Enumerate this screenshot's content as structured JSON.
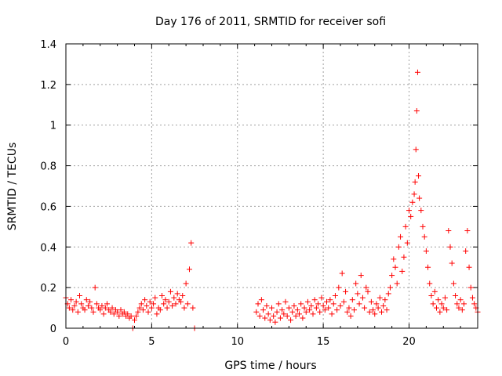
{
  "chart_data": {
    "type": "scatter",
    "title": "Day 176 of 2011, SRMTID for receiver sofi",
    "xlabel": "GPS time / hours",
    "ylabel": "SRMTID / TECUs",
    "xlim": [
      0,
      24
    ],
    "ylim": [
      0,
      1.4
    ],
    "xticks": [
      0,
      5,
      10,
      15,
      20
    ],
    "xtick_labels": [
      "0",
      "5",
      "10",
      "15",
      "20"
    ],
    "yticks": [
      0,
      0.2,
      0.4,
      0.6,
      0.8,
      1,
      1.2,
      1.4
    ],
    "ytick_labels": [
      "0",
      "0.2",
      "0.4",
      "0.6",
      "0.8",
      "1",
      "1.2",
      "1.4"
    ],
    "grid": true,
    "marker": "+",
    "color": "#ff0000",
    "series": [
      {
        "name": "SRMTID",
        "x": [
          0.0,
          0.1,
          0.2,
          0.3,
          0.4,
          0.5,
          0.6,
          0.7,
          0.8,
          0.9,
          1.0,
          1.1,
          1.2,
          1.3,
          1.4,
          1.5,
          1.6,
          1.7,
          1.8,
          1.9,
          2.0,
          2.1,
          2.2,
          2.3,
          2.4,
          2.5,
          2.6,
          2.7,
          2.8,
          2.9,
          3.0,
          3.1,
          3.2,
          3.3,
          3.4,
          3.5,
          3.6,
          3.7,
          3.8,
          3.9,
          4.0,
          4.1,
          4.2,
          4.3,
          4.4,
          4.5,
          4.6,
          4.7,
          4.8,
          4.9,
          5.0,
          5.1,
          5.2,
          5.3,
          5.4,
          5.5,
          5.6,
          5.7,
          5.8,
          5.9,
          6.0,
          6.1,
          6.2,
          6.3,
          6.4,
          6.5,
          6.6,
          6.7,
          6.8,
          6.9,
          7.0,
          7.1,
          7.2,
          7.3,
          7.4,
          7.5,
          11.1,
          11.2,
          11.3,
          11.4,
          11.5,
          11.6,
          11.7,
          11.8,
          11.9,
          12.0,
          12.1,
          12.2,
          12.3,
          12.4,
          12.5,
          12.6,
          12.7,
          12.8,
          12.9,
          13.0,
          13.1,
          13.2,
          13.3,
          13.4,
          13.5,
          13.6,
          13.7,
          13.8,
          13.9,
          14.0,
          14.1,
          14.2,
          14.3,
          14.4,
          14.5,
          14.6,
          14.7,
          14.8,
          14.9,
          15.0,
          15.1,
          15.2,
          15.3,
          15.4,
          15.5,
          15.6,
          15.7,
          15.8,
          15.9,
          16.0,
          16.1,
          16.2,
          16.3,
          16.4,
          16.5,
          16.6,
          16.7,
          16.8,
          16.9,
          17.0,
          17.1,
          17.2,
          17.3,
          17.4,
          17.5,
          17.6,
          17.7,
          17.8,
          17.9,
          18.0,
          18.1,
          18.2,
          18.3,
          18.4,
          18.5,
          18.6,
          18.7,
          18.8,
          18.9,
          19.0,
          19.1,
          19.2,
          19.3,
          19.4,
          19.5,
          19.6,
          19.7,
          19.8,
          19.9,
          20.0,
          20.1,
          20.2,
          20.3,
          20.35,
          20.4,
          20.45,
          20.5,
          20.55,
          20.6,
          20.7,
          20.8,
          20.9,
          21.0,
          21.1,
          21.2,
          21.3,
          21.4,
          21.5,
          21.6,
          21.7,
          21.8,
          21.9,
          22.0,
          22.1,
          22.2,
          22.3,
          22.4,
          22.5,
          22.6,
          22.7,
          22.8,
          22.9,
          23.0,
          23.1,
          23.2,
          23.3,
          23.4,
          23.5,
          23.6,
          23.7,
          23.8,
          23.9,
          24.0
        ],
        "y": [
          0.15,
          0.12,
          0.1,
          0.14,
          0.09,
          0.11,
          0.13,
          0.08,
          0.16,
          0.12,
          0.1,
          0.09,
          0.14,
          0.11,
          0.13,
          0.1,
          0.08,
          0.2,
          0.12,
          0.1,
          0.09,
          0.11,
          0.07,
          0.1,
          0.12,
          0.09,
          0.08,
          0.1,
          0.07,
          0.09,
          0.08,
          0.06,
          0.09,
          0.07,
          0.08,
          0.06,
          0.07,
          0.05,
          0.06,
          0.0,
          0.04,
          0.06,
          0.08,
          0.1,
          0.12,
          0.09,
          0.14,
          0.11,
          0.08,
          0.13,
          0.1,
          0.12,
          0.15,
          0.07,
          0.1,
          0.09,
          0.16,
          0.12,
          0.14,
          0.1,
          0.13,
          0.18,
          0.11,
          0.15,
          0.12,
          0.17,
          0.14,
          0.13,
          0.16,
          0.1,
          0.22,
          0.12,
          0.29,
          0.42,
          0.1,
          0.0,
          0.08,
          0.12,
          0.06,
          0.14,
          0.09,
          0.05,
          0.11,
          0.07,
          0.04,
          0.1,
          0.06,
          0.03,
          0.08,
          0.12,
          0.05,
          0.09,
          0.07,
          0.13,
          0.06,
          0.1,
          0.04,
          0.08,
          0.11,
          0.06,
          0.09,
          0.07,
          0.12,
          0.05,
          0.1,
          0.08,
          0.13,
          0.09,
          0.11,
          0.07,
          0.14,
          0.1,
          0.12,
          0.08,
          0.15,
          0.11,
          0.09,
          0.13,
          0.1,
          0.14,
          0.07,
          0.12,
          0.16,
          0.09,
          0.2,
          0.11,
          0.27,
          0.13,
          0.18,
          0.08,
          0.1,
          0.06,
          0.14,
          0.09,
          0.22,
          0.17,
          0.12,
          0.26,
          0.15,
          0.1,
          0.2,
          0.18,
          0.08,
          0.13,
          0.09,
          0.07,
          0.12,
          0.1,
          0.15,
          0.08,
          0.11,
          0.14,
          0.09,
          0.17,
          0.2,
          0.26,
          0.34,
          0.3,
          0.22,
          0.4,
          0.45,
          0.28,
          0.35,
          0.5,
          0.42,
          0.58,
          0.55,
          0.62,
          0.66,
          0.72,
          0.88,
          1.07,
          1.26,
          0.75,
          0.64,
          0.58,
          0.5,
          0.45,
          0.38,
          0.3,
          0.22,
          0.16,
          0.12,
          0.18,
          0.1,
          0.14,
          0.08,
          0.12,
          0.1,
          0.15,
          0.09,
          0.48,
          0.4,
          0.32,
          0.22,
          0.16,
          0.12,
          0.1,
          0.14,
          0.09,
          0.12,
          0.38,
          0.48,
          0.3,
          0.2,
          0.15,
          0.12,
          0.1,
          0.08
        ]
      }
    ]
  }
}
